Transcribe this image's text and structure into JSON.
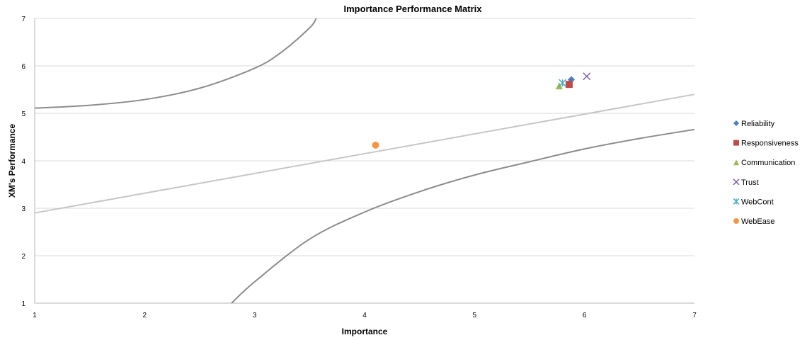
{
  "chart_data": {
    "type": "scatter",
    "title": "Importance Performance Matrix",
    "xlabel": "Importance",
    "ylabel": "XM's Performance",
    "xlim": [
      1,
      7
    ],
    "ylim": [
      1,
      7
    ],
    "xticks": [
      "1",
      "2",
      "3",
      "4",
      "5",
      "6",
      "7"
    ],
    "yticks": [
      "1",
      "2",
      "3",
      "4",
      "5",
      "6",
      "7"
    ],
    "grid": "horizontal",
    "legend_position": "right",
    "series": [
      {
        "name": "Reliability",
        "marker": "diamond",
        "color": "#4a7ebb",
        "points": [
          [
            5.88,
            5.71
          ]
        ]
      },
      {
        "name": "Responsiveness",
        "marker": "square",
        "color": "#be4b48",
        "points": [
          [
            5.86,
            5.61
          ]
        ]
      },
      {
        "name": "Communication",
        "marker": "triangle",
        "color": "#98b954",
        "points": [
          [
            5.77,
            5.58
          ]
        ]
      },
      {
        "name": "Trust",
        "marker": "x",
        "color": "#7d60a0",
        "points": [
          [
            6.02,
            5.78
          ]
        ]
      },
      {
        "name": "WebCont",
        "marker": "star",
        "color": "#46aac4",
        "points": [
          [
            5.8,
            5.64
          ]
        ]
      },
      {
        "name": "WebEase",
        "marker": "circle",
        "color": "#f79646",
        "points": [
          [
            4.1,
            4.33
          ]
        ]
      }
    ],
    "lines": [
      {
        "kind": "upper-curve",
        "color": "#8c8c8c",
        "points": [
          [
            1,
            5.11
          ],
          [
            1.5,
            5.17
          ],
          [
            2,
            5.29
          ],
          [
            2.5,
            5.53
          ],
          [
            3,
            5.95
          ],
          [
            3.25,
            6.3
          ],
          [
            3.5,
            6.8
          ],
          [
            3.56,
            7
          ]
        ]
      },
      {
        "kind": "diagonal",
        "color": "#c6c6c6",
        "points": [
          [
            1,
            2.9
          ],
          [
            7,
            5.4
          ]
        ]
      },
      {
        "kind": "lower-curve",
        "color": "#8c8c8c",
        "points": [
          [
            2.79,
            1
          ],
          [
            3,
            1.45
          ],
          [
            3.5,
            2.35
          ],
          [
            4,
            2.92
          ],
          [
            4.5,
            3.35
          ],
          [
            5,
            3.7
          ],
          [
            5.5,
            3.98
          ],
          [
            6,
            4.25
          ],
          [
            6.5,
            4.47
          ],
          [
            7,
            4.66
          ]
        ]
      }
    ]
  }
}
